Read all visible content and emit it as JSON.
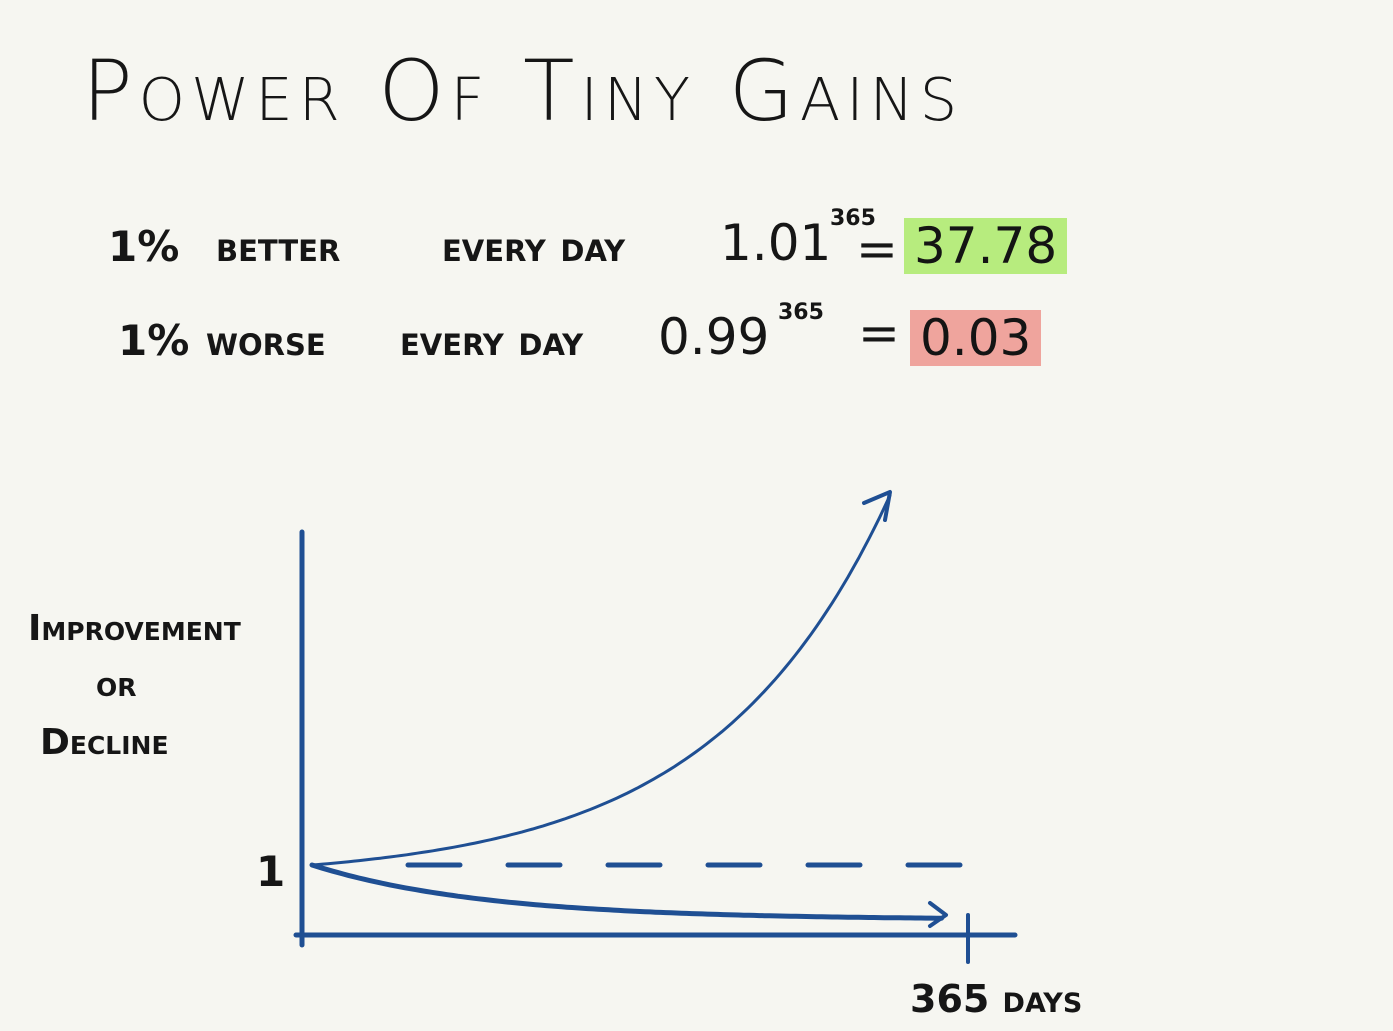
{
  "title": "Power Of Tiny Gains",
  "equations": {
    "better": {
      "label_pct": "1%",
      "label_text": "better",
      "label_day": "every day",
      "base": "1.01",
      "exponent": "365",
      "equals": "=",
      "result": "37.78",
      "result_color": "#b7ec7e"
    },
    "worse": {
      "label_pct": "1%",
      "label_text": "worse",
      "label_day": "every day",
      "base": "0.99",
      "exponent": "365",
      "equals": "=",
      "result": "0.03",
      "result_color": "#efa49d"
    }
  },
  "chart_data": {
    "type": "line",
    "ylabel_lines": [
      "Improvement",
      "or",
      "Decline"
    ],
    "y_tick_label": "1",
    "x_tick_label": "365 days",
    "line_color": "#1f4f93",
    "series": [
      {
        "name": "",
        "rule": "1.01^x",
        "x": [
          0,
          50,
          100,
          150,
          200,
          250,
          300,
          330
        ],
        "y": [
          1,
          1.64,
          2.7,
          4.45,
          7.32,
          12.03,
          19.79,
          26.7
        ],
        "arrow_end": true
      },
      {
        "name": "",
        "rule": "0.99^x",
        "x": [
          0,
          50,
          100,
          150,
          200,
          250,
          300,
          365
        ],
        "y": [
          1,
          0.61,
          0.37,
          0.22,
          0.13,
          0.08,
          0.05,
          0.03
        ],
        "arrow_end": true
      },
      {
        "name": "",
        "rule": "baseline",
        "x": [
          0,
          365
        ],
        "y": [
          1,
          1
        ],
        "dashed": true
      }
    ]
  }
}
